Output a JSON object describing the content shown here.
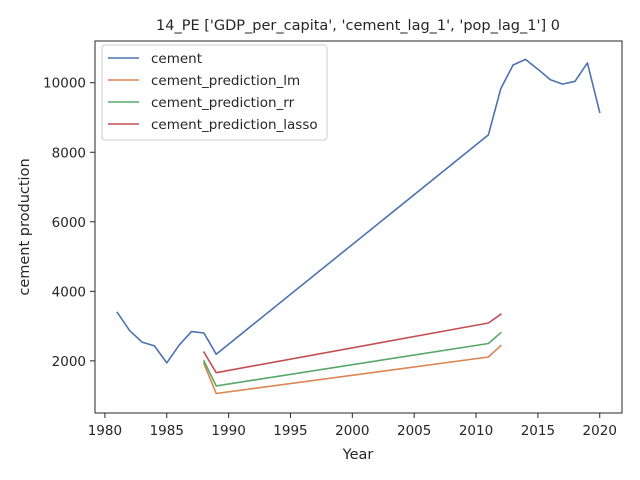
{
  "chart_data": {
    "type": "line",
    "title": "14_PE ['GDP_per_capita', 'cement_lag_1', 'pop_lag_1'] 0",
    "xlabel": "Year",
    "ylabel": "cement production",
    "xlim": [
      1979.2,
      2021.8
    ],
    "ylim": [
      500,
      11200
    ],
    "xticks": [
      1980,
      1985,
      1990,
      1995,
      2000,
      2005,
      2010,
      2015,
      2020
    ],
    "yticks": [
      2000,
      4000,
      6000,
      8000,
      10000
    ],
    "grid": false,
    "legend_position": "top-left",
    "series": [
      {
        "name": "cement",
        "color": "#4c72b0",
        "x": [
          1981,
          1982,
          1983,
          1984,
          1985,
          1986,
          1987,
          1988,
          1989,
          2011,
          2012,
          2013,
          2014,
          2015,
          2016,
          2017,
          2018,
          2019,
          2020
        ],
        "y": [
          3390,
          2870,
          2540,
          2430,
          1940,
          2450,
          2840,
          2800,
          2190,
          8500,
          9830,
          10510,
          10670,
          10390,
          10090,
          9960,
          10040,
          10570,
          9150
        ]
      },
      {
        "name": "cement_prediction_lm",
        "color": "#dd8452",
        "x": [
          1988,
          1989,
          2011,
          2012
        ],
        "y": [
          1920,
          1060,
          2110,
          2440
        ]
      },
      {
        "name": "cement_prediction_rr",
        "color": "#55a868",
        "x": [
          1988,
          1989,
          2011,
          2012
        ],
        "y": [
          2000,
          1280,
          2500,
          2810
        ]
      },
      {
        "name": "cement_prediction_lasso",
        "color": "#c44e52",
        "x": [
          1988,
          1989,
          2011,
          2012
        ],
        "y": [
          2250,
          1660,
          3090,
          3340
        ]
      }
    ]
  }
}
